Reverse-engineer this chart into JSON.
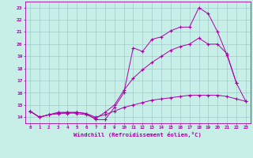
{
  "xlabel": "Windchill (Refroidissement éolien,°C)",
  "background_color": "#c8eee8",
  "grid_color": "#a0cccc",
  "line_color": "#aa00aa",
  "xlim": [
    -0.5,
    23.5
  ],
  "ylim": [
    13.5,
    23.5
  ],
  "xticks": [
    0,
    1,
    2,
    3,
    4,
    5,
    6,
    7,
    8,
    9,
    10,
    11,
    12,
    13,
    14,
    15,
    16,
    17,
    18,
    19,
    20,
    21,
    22,
    23
  ],
  "yticks": [
    14,
    15,
    16,
    17,
    18,
    19,
    20,
    21,
    22,
    23
  ],
  "line1_x": [
    0,
    1,
    2,
    3,
    4,
    5,
    6,
    7,
    8,
    9,
    10,
    11,
    12,
    13,
    14,
    15,
    16,
    17,
    18,
    19,
    20,
    21,
    22
  ],
  "line1_y": [
    14.5,
    14.0,
    14.2,
    14.4,
    14.4,
    14.4,
    14.3,
    13.8,
    13.8,
    14.8,
    16.0,
    19.7,
    19.4,
    20.4,
    20.6,
    21.1,
    21.4,
    21.4,
    23.0,
    22.5,
    21.0,
    19.1,
    16.8
  ],
  "line2_x": [
    0,
    1,
    2,
    3,
    4,
    5,
    6,
    7,
    8,
    9,
    10,
    11,
    12,
    13,
    14,
    15,
    16,
    17,
    18,
    19,
    20,
    21,
    22,
    23
  ],
  "line2_y": [
    14.5,
    14.0,
    14.2,
    14.3,
    14.4,
    14.3,
    14.2,
    13.9,
    14.4,
    15.0,
    16.2,
    17.2,
    17.9,
    18.5,
    19.0,
    19.5,
    19.8,
    20.0,
    20.5,
    20.0,
    20.0,
    19.2,
    16.8,
    15.3
  ],
  "line3_x": [
    0,
    1,
    2,
    3,
    4,
    5,
    6,
    7,
    8,
    9,
    10,
    11,
    12,
    13,
    14,
    15,
    16,
    17,
    18,
    19,
    20,
    21,
    22,
    23
  ],
  "line3_y": [
    14.5,
    14.0,
    14.2,
    14.3,
    14.3,
    14.4,
    14.3,
    14.0,
    14.2,
    14.5,
    14.8,
    15.0,
    15.2,
    15.4,
    15.5,
    15.6,
    15.7,
    15.8,
    15.8,
    15.8,
    15.8,
    15.7,
    15.5,
    15.3
  ]
}
